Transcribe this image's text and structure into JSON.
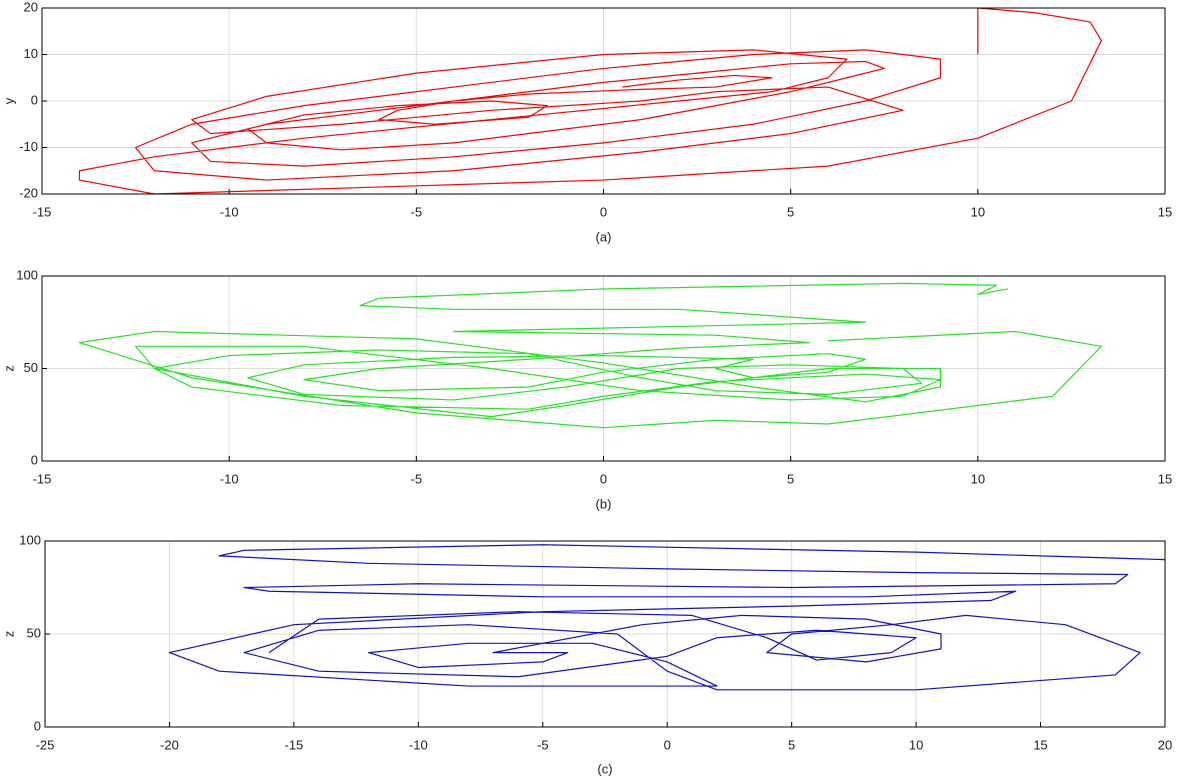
{
  "chart_data": [
    {
      "type": "line",
      "xlabel": "(a)",
      "ylabel": "y",
      "xlim": [
        -15,
        15
      ],
      "ylim": [
        -20,
        20
      ],
      "xticks": [
        -15,
        -10,
        -5,
        0,
        5,
        10,
        15
      ],
      "yticks": [
        -20,
        -10,
        0,
        10,
        20
      ],
      "grid": true,
      "x": [
        0.5,
        2,
        3.5,
        4.5,
        3,
        1,
        -2,
        -4,
        -5.5,
        -6,
        -4.5,
        -2,
        -1.5,
        -3,
        -5.5,
        -8,
        -9.5,
        -9,
        -7,
        -4,
        -1,
        1,
        3,
        5,
        6.5,
        7.5,
        7,
        5,
        2.5,
        0,
        -3,
        -6,
        -9,
        -11,
        -10.5,
        -8,
        -4,
        0,
        4,
        7,
        9,
        9,
        7,
        4,
        0,
        -4,
        -8,
        -11,
        -12.5,
        -12,
        -9,
        -4,
        1,
        5,
        8,
        6,
        3,
        1,
        -3,
        -7,
        -10.5,
        -11,
        -9,
        -5,
        0,
        4,
        6.5,
        6,
        4.5,
        2,
        -3,
        -8,
        -12,
        -14,
        -14,
        -12,
        -8,
        0,
        6,
        10,
        12.5,
        13.3,
        13,
        11.5,
        10,
        10
      ],
      "series": [
        {
          "color": "#ff0000",
          "values": [
            3,
            4.5,
            5.5,
            5,
            3,
            2.5,
            1.5,
            0,
            -2,
            -4,
            -5,
            -3.5,
            -1,
            0,
            -1,
            -3,
            -6,
            -9,
            -10.5,
            -9,
            -6,
            -4,
            -1,
            2,
            5,
            7,
            8.5,
            8,
            6,
            4,
            1,
            -2,
            -5,
            -9,
            -13,
            -14,
            -12,
            -9,
            -5,
            0,
            5,
            9,
            11,
            10,
            7,
            3,
            -1,
            -5,
            -10,
            -15,
            -17,
            -15,
            -11,
            -7,
            -2,
            3,
            2,
            0,
            -2,
            -5,
            -7,
            -4,
            1,
            6,
            10,
            11,
            9,
            5,
            2,
            0,
            -4,
            -8,
            -12,
            -15,
            -17,
            -20,
            -19,
            -17,
            -14,
            -8,
            0,
            13,
            17,
            19,
            20,
            10
          ]
        }
      ]
    },
    {
      "type": "line",
      "xlabel": "(b)",
      "ylabel": "z",
      "xlim": [
        -15,
        15
      ],
      "ylim": [
        0,
        100
      ],
      "xticks": [
        -15,
        -10,
        -5,
        0,
        5,
        10,
        15
      ],
      "yticks": [
        0,
        50,
        100
      ],
      "grid": true,
      "x": [
        10.8,
        10,
        10.5,
        8,
        0,
        -6,
        -6.5,
        -4,
        2,
        7,
        -4,
        3,
        5.5,
        2,
        -2,
        -6,
        -8,
        -6,
        -2,
        0,
        3,
        6,
        7,
        6,
        4,
        3,
        4,
        0,
        -4,
        -8,
        -9.5,
        -8,
        -4,
        -1,
        2,
        5,
        8,
        8.5,
        6,
        3,
        1,
        -2,
        -6,
        -10,
        -12,
        -11,
        -7,
        -2,
        0,
        3,
        7,
        9,
        8,
        5,
        1,
        -3,
        -8,
        -12.5,
        -12,
        -8,
        -3,
        -1,
        2,
        6,
        9,
        9,
        7,
        4,
        0,
        -5,
        -12,
        -14,
        -11,
        -5,
        0,
        3,
        6,
        12,
        13.3,
        11,
        6
      ],
      "series": [
        {
          "color": "#22e622",
          "values": [
            93,
            90,
            95,
            96,
            93,
            88,
            84,
            82,
            82,
            75,
            70,
            68,
            64,
            61,
            55,
            50,
            44,
            38,
            40,
            48,
            55,
            58,
            55,
            48,
            45,
            50,
            55,
            57,
            56,
            52,
            45,
            36,
            33,
            40,
            50,
            52,
            50,
            42,
            36,
            38,
            45,
            58,
            60,
            57,
            50,
            40,
            30,
            28,
            35,
            43,
            47,
            44,
            35,
            33,
            38,
            50,
            62,
            62,
            50,
            35,
            24,
            30,
            40,
            50,
            50,
            40,
            32,
            40,
            53,
            66,
            70,
            64,
            45,
            26,
            18,
            22,
            20,
            35,
            62,
            70,
            65
          ]
        }
      ]
    },
    {
      "type": "line",
      "xlabel": "(c)",
      "ylabel": "z",
      "xlim": [
        -25,
        20
      ],
      "ylim": [
        0,
        100
      ],
      "xticks": [
        -25,
        -20,
        -15,
        -10,
        -5,
        0,
        5,
        10,
        15,
        20
      ],
      "yticks": [
        0,
        50,
        100
      ],
      "grid": true,
      "x": [
        20,
        10,
        -5,
        -17,
        -18,
        -12,
        0,
        10,
        18.5,
        18,
        5,
        -10,
        -17,
        -16,
        -5,
        8,
        14,
        13,
        5,
        -5,
        -15,
        -20,
        -18,
        -8,
        2,
        0,
        -3,
        -8,
        -12,
        -10,
        -5,
        -4,
        -7,
        -5,
        -1,
        3,
        8,
        11,
        11,
        8,
        4,
        5,
        9,
        12,
        16,
        19,
        18,
        10,
        2,
        0,
        -2,
        -8,
        -14,
        -17,
        -14,
        -6,
        0,
        2,
        6,
        10,
        9,
        6,
        4,
        1,
        -6,
        -14,
        -16
      ],
      "series": [
        {
          "color": "#1010d0",
          "values": [
            90,
            94,
            98,
            95,
            92,
            88,
            85,
            83,
            82,
            77,
            75,
            77,
            75,
            73,
            70,
            70,
            73,
            68,
            65,
            62,
            55,
            40,
            30,
            22,
            22,
            35,
            45,
            45,
            40,
            32,
            35,
            40,
            40,
            45,
            55,
            60,
            58,
            50,
            42,
            35,
            40,
            50,
            55,
            60,
            55,
            40,
            28,
            20,
            20,
            30,
            50,
            55,
            52,
            40,
            30,
            27,
            38,
            48,
            52,
            48,
            40,
            36,
            48,
            60,
            62,
            58,
            40
          ]
        }
      ]
    }
  ]
}
